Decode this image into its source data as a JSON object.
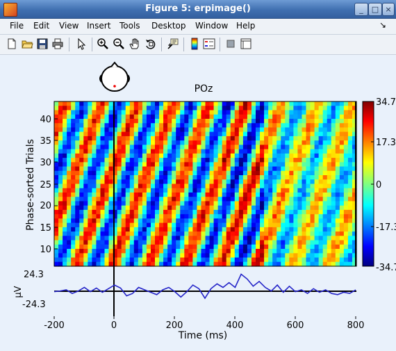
{
  "window": {
    "title": "Figure 5:  erpimage()"
  },
  "menu": {
    "items": [
      "File",
      "Edit",
      "View",
      "Insert",
      "Tools",
      "Desktop",
      "Window",
      "Help"
    ],
    "dock_glyph": "↘"
  },
  "toolbar": {
    "icons": [
      "new-figure-icon",
      "open-file-icon",
      "save-icon",
      "print-icon",
      "edit-plot-arrow-icon",
      "zoom-in-icon",
      "zoom-out-icon",
      "pan-hand-icon",
      "rotate-3d-icon",
      "data-cursor-icon",
      "colorbar-icon",
      "legend-icon",
      "hide-plot-tools-icon",
      "show-plot-tools-icon"
    ]
  },
  "figure": {
    "channel_label": "POz",
    "colorbar": {
      "ticks": [
        "34.7",
        "17.3",
        "0",
        "-17.3",
        "-34.7"
      ],
      "min": -34.7,
      "max": 34.7
    },
    "erp_axis": {
      "ylabel": "µV",
      "ticks": [
        "24.3",
        "-24.3"
      ]
    },
    "time_axis": {
      "xlabel": "Time (ms)",
      "ticks": [
        "-200",
        "0",
        "200",
        "400",
        "600",
        "800"
      ]
    },
    "image_axis": {
      "ylabel": "Phase-sorted Trials",
      "ticks": [
        "40",
        "35",
        "30",
        "25",
        "20",
        "15",
        "10"
      ]
    }
  },
  "chart_data": {
    "type": "heatmap",
    "title": "POz",
    "xlabel": "Time (ms)",
    "ylabel": "Phase-sorted Trials",
    "xlim": [
      -200,
      800
    ],
    "ylim": [
      6,
      44
    ],
    "clim": [
      -34.7,
      34.7
    ],
    "colormap": "jet",
    "time_marker_ms": 0,
    "erp_trace": {
      "ylabel": "µV",
      "ylim": [
        -24.3,
        24.3
      ],
      "x": [
        -200,
        -180,
        -160,
        -140,
        -120,
        -100,
        -80,
        -60,
        -40,
        -20,
        0,
        20,
        40,
        60,
        80,
        100,
        120,
        140,
        160,
        180,
        200,
        220,
        240,
        260,
        280,
        300,
        320,
        340,
        360,
        380,
        400,
        420,
        440,
        460,
        480,
        500,
        520,
        540,
        560,
        580,
        600,
        620,
        640,
        660,
        680,
        700,
        720,
        740,
        760,
        780,
        800
      ],
      "y": [
        -3,
        -2,
        0,
        -6,
        -2,
        4,
        -3,
        3,
        -4,
        2,
        8,
        3,
        -10,
        -6,
        4,
        0,
        -4,
        -8,
        0,
        4,
        -3,
        -12,
        -3,
        8,
        2,
        -14,
        2,
        10,
        4,
        12,
        4,
        26,
        18,
        6,
        14,
        4,
        -2,
        8,
        -4,
        6,
        -3,
        0,
        -6,
        2,
        -4,
        0,
        -6,
        -8,
        -4,
        -6,
        0
      ]
    }
  }
}
